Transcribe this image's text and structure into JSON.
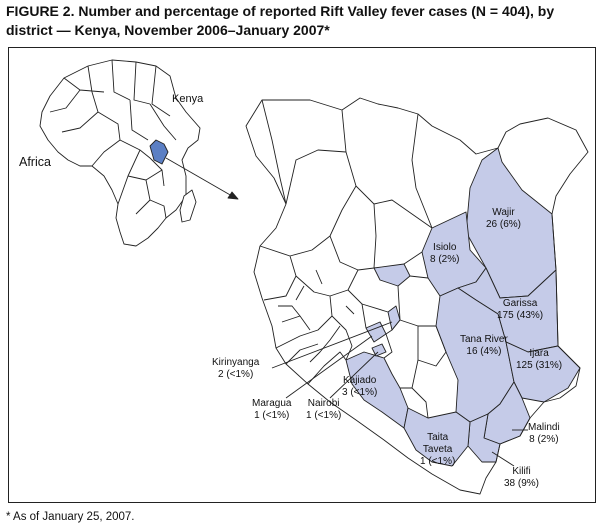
{
  "figure": {
    "title": "FIGURE 2.  Number and percentage of reported Rift Valley fever cases (N = 404), by district — Kenya, November 2006–January 2007*",
    "footnote": "* As of January 25, 2007."
  },
  "inset": {
    "continent_label": "Africa",
    "country_label": "Kenya"
  },
  "districts": [
    {
      "name": "Wajir",
      "count_text": "26 (6%)",
      "cases": 26,
      "percent": 6
    },
    {
      "name": "Isiolo",
      "count_text": "8 (2%)",
      "cases": 8,
      "percent": 2
    },
    {
      "name": "Garissa",
      "count_text": "175 (43%)",
      "cases": 175,
      "percent": 43
    },
    {
      "name": "Tana River",
      "count_text": "16 (4%)",
      "cases": 16,
      "percent": 4
    },
    {
      "name": "Ijara",
      "count_text": "125 (31%)",
      "cases": 125,
      "percent": 31
    },
    {
      "name": "Kajiado",
      "count_text": "3 (<1%)",
      "cases": 3,
      "percent_text": "<1%"
    },
    {
      "name": "Kirinyanga",
      "count_text": "2 (<1%)",
      "cases": 2,
      "percent_text": "<1%"
    },
    {
      "name": "Maragua",
      "count_text": "1 (<1%)",
      "cases": 1,
      "percent_text": "<1%"
    },
    {
      "name": "Nairobi",
      "count_text": "1 (<1%)",
      "cases": 1,
      "percent_text": "<1%"
    },
    {
      "name": "Malindi",
      "count_text": "8 (2%)",
      "cases": 8,
      "percent": 2
    },
    {
      "name": "Taita Taveta",
      "name_lines": [
        "Taita",
        "Taveta"
      ],
      "count_text": "1 (<1%)",
      "cases": 1,
      "percent_text": "<1%"
    },
    {
      "name": "Kilifi",
      "count_text": "38 (9%)",
      "cases": 38,
      "percent": 9
    }
  ],
  "colors": {
    "affected": "#c5cbe8",
    "kenya_inset": "#5b7fc4",
    "outline": "#222222",
    "background": "#ffffff"
  }
}
